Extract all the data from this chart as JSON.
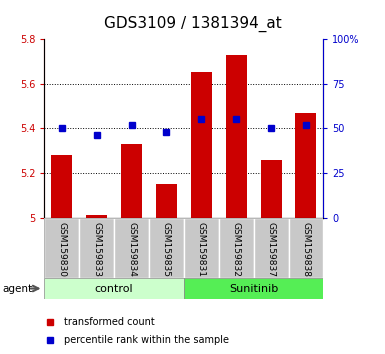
{
  "title": "GDS3109 / 1381394_at",
  "samples": [
    "GSM159830",
    "GSM159833",
    "GSM159834",
    "GSM159835",
    "GSM159831",
    "GSM159832",
    "GSM159837",
    "GSM159838"
  ],
  "red_values": [
    5.28,
    5.01,
    5.33,
    5.15,
    5.65,
    5.73,
    5.26,
    5.47
  ],
  "blue_values": [
    50,
    46,
    52,
    48,
    55,
    55,
    50,
    52
  ],
  "ylim_left": [
    5.0,
    5.8
  ],
  "ylim_right": [
    0,
    100
  ],
  "yticks_left": [
    5.0,
    5.2,
    5.4,
    5.6,
    5.8
  ],
  "ytick_labels_left": [
    "5",
    "5.2",
    "5.4",
    "5.6",
    "5.8"
  ],
  "yticks_right": [
    0,
    25,
    50,
    75,
    100
  ],
  "ytick_labels_right": [
    "0",
    "25",
    "50",
    "75",
    "100%"
  ],
  "bar_color": "#cc0000",
  "dot_color": "#0000cc",
  "control_color": "#ccffcc",
  "sunitinib_color": "#55ee55",
  "control_label": "control",
  "sunitinib_label": "Sunitinib",
  "agent_label": "agent",
  "legend_bar": "transformed count",
  "legend_dot": "percentile rank within the sample",
  "bar_bottom": 5.0,
  "sample_area_color": "#c8c8c8",
  "title_fontsize": 11,
  "axis_fontsize": 7,
  "label_fontsize": 6.5,
  "group_fontsize": 8,
  "legend_fontsize": 7
}
